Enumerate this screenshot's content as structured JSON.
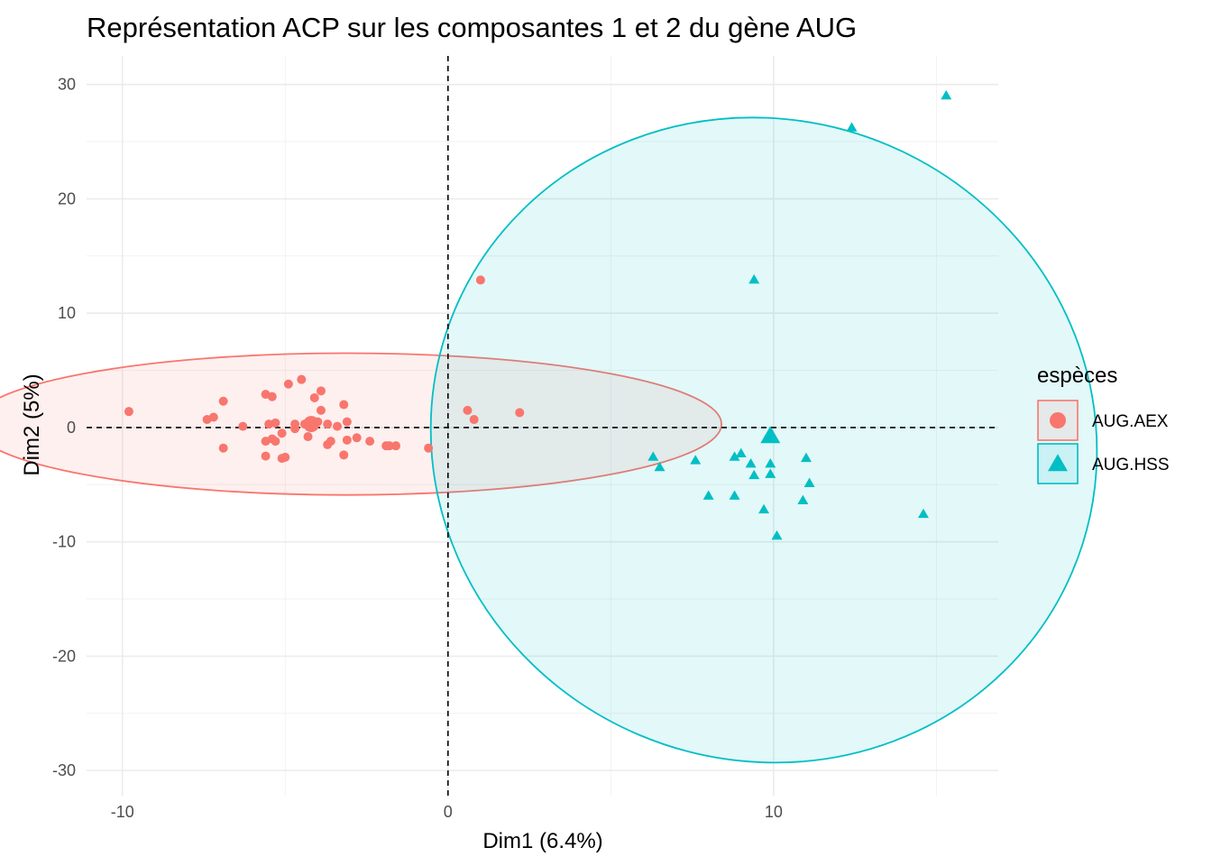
{
  "chart_data": {
    "type": "scatter",
    "title": "Représentation ACP sur les composantes 1 et 2 du gène AUG",
    "xlabel": "Dim1 (6.4%)",
    "ylabel": "Dim2 (5%)",
    "xlim": [
      -11.1,
      16.9
    ],
    "ylim": [
      -32.2,
      32.5
    ],
    "x_ticks": [
      -10,
      0,
      10
    ],
    "y_ticks": [
      -30,
      -20,
      -10,
      0,
      10,
      20,
      30
    ],
    "x_tick_labels": [
      "-10",
      "0",
      "10"
    ],
    "y_tick_labels": [
      "-30",
      "-20",
      "-10",
      "0",
      "10",
      "20",
      "30"
    ],
    "grid": true,
    "reference_lines": {
      "x": 0,
      "y": 0,
      "style": "dashed"
    },
    "legend": {
      "title": "espèces",
      "position": "right"
    },
    "series": [
      {
        "name": "AUG.AEX",
        "color": "#F8766D",
        "marker": "circle",
        "centroid": [
          -4.2,
          0.3
        ],
        "ellipse": {
          "cx": -3.1,
          "cy": 0.3,
          "rx": 11.5,
          "ry": 6.2,
          "angle_deg": 0
        },
        "x": [
          -9.8,
          -7.2,
          -7.4,
          -6.9,
          -6.9,
          -6.3,
          -5.6,
          -5.4,
          -5.5,
          -5.6,
          -5.4,
          -5.3,
          -5.1,
          -5.0,
          -4.7,
          -4.9,
          -4.7,
          -4.5,
          -4.4,
          -4.3,
          -4.1,
          -4.0,
          -3.9,
          -3.7,
          -3.7,
          -3.9,
          -3.6,
          -3.4,
          -3.2,
          -3.1,
          -3.1,
          -3.2,
          -2.8,
          -2.4,
          -1.9,
          -1.8,
          -1.6,
          -0.6,
          0.6,
          0.8,
          1.0,
          2.2,
          -5.3,
          -5.6,
          -5.1
        ],
        "y": [
          1.4,
          0.9,
          0.7,
          2.3,
          -1.8,
          0.1,
          2.9,
          2.7,
          0.3,
          -1.2,
          -1.0,
          0.4,
          -0.5,
          -2.6,
          0.3,
          3.8,
          -0.1,
          4.2,
          0.3,
          -0.8,
          2.6,
          0.5,
          3.2,
          -1.5,
          0.3,
          1.5,
          -1.2,
          0.1,
          2.0,
          -1.1,
          0.5,
          -2.4,
          -0.9,
          -1.2,
          -1.6,
          -1.6,
          -1.6,
          -1.8,
          1.5,
          0.7,
          12.9,
          1.3,
          -1.2,
          -2.5,
          -2.7
        ]
      },
      {
        "name": "AUG.HSS",
        "color": "#00BFC4",
        "marker": "triangle",
        "centroid": [
          9.9,
          -0.8
        ],
        "ellipse": {
          "cx": 9.7,
          "cy": -1.1,
          "rx": 10.3,
          "ry": 28.0,
          "angle_deg": 23
        },
        "x": [
          6.3,
          6.5,
          7.6,
          8.0,
          8.8,
          8.8,
          9.0,
          9.3,
          9.4,
          9.4,
          9.7,
          9.9,
          9.9,
          10.1,
          10.9,
          11.0,
          11.1,
          12.4,
          14.6,
          15.3
        ],
        "y": [
          -2.6,
          -3.5,
          -2.9,
          -6.0,
          -2.6,
          -6.0,
          -2.3,
          -3.2,
          -4.2,
          12.9,
          -7.2,
          -3.2,
          -4.1,
          -9.5,
          -6.4,
          -2.7,
          -4.9,
          26.2,
          -7.6,
          29.0
        ]
      }
    ]
  }
}
